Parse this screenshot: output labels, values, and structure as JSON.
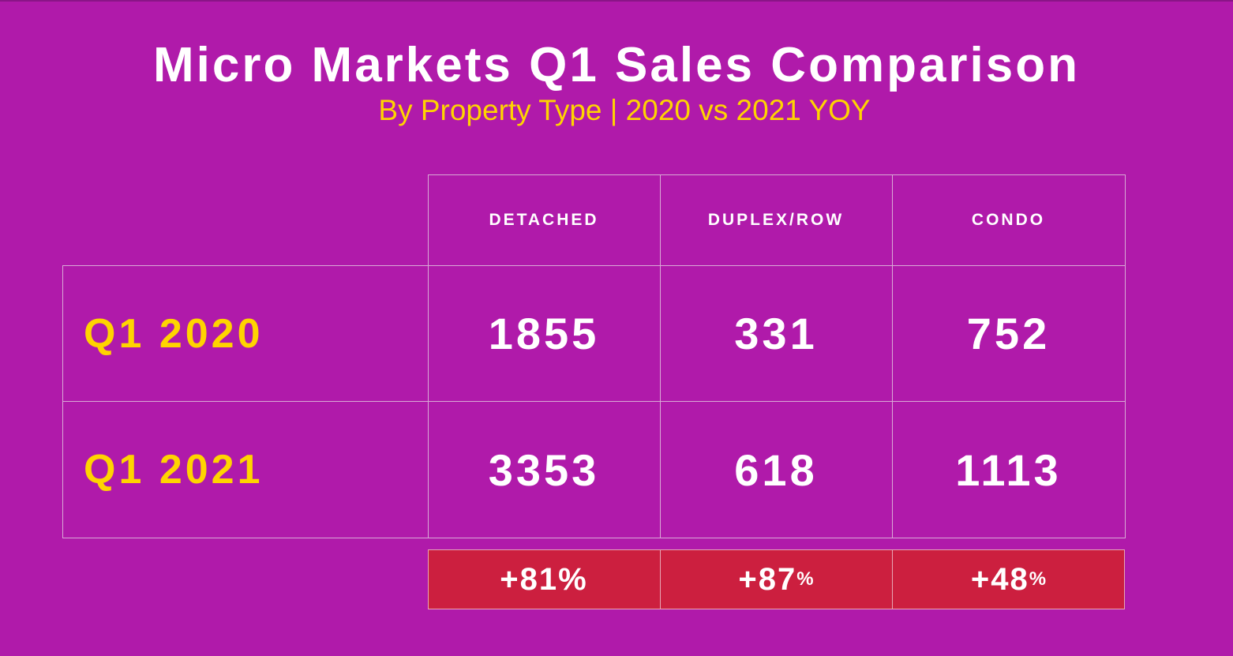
{
  "title": "Micro Markets Q1 Sales Comparison",
  "subtitle": "By Property Type | 2020 vs 2021 YOY",
  "columns": [
    "DETACHED",
    "DUPLEX/ROW",
    "CONDO"
  ],
  "rows": [
    {
      "label": "Q1 2020",
      "values": [
        "1855",
        "331",
        "752"
      ]
    },
    {
      "label": "Q1 2021",
      "values": [
        "3353",
        "618",
        "1113"
      ]
    }
  ],
  "changes": [
    {
      "value": "+81",
      "unit": "%"
    },
    {
      "value": "+87",
      "unit": "%"
    },
    {
      "value": "+48",
      "unit": "%"
    }
  ],
  "colors": {
    "background": "#b01aaa",
    "title": "#ffffff",
    "subtitle": "#ffd400",
    "row_label": "#ffd400",
    "change_background": "#cc1f3f"
  }
}
